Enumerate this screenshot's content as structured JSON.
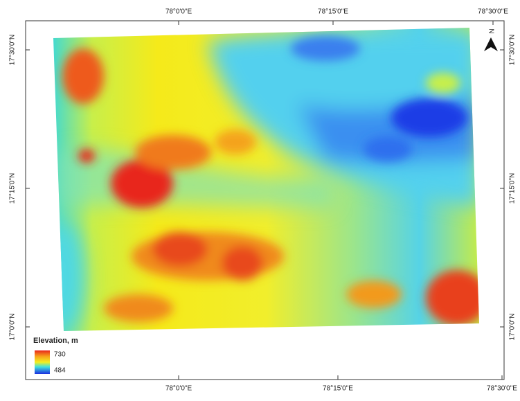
{
  "map": {
    "top_labels": [
      "78°0'0\"E",
      "78°15'0\"E",
      "78°30'0\"E"
    ],
    "bottom_labels": [
      "78°0'0\"E",
      "78°15'0\"E",
      "78°30'0\"E"
    ],
    "left_labels": [
      "17°30'0\"N",
      "17°15'0\"N",
      "17°0'0\"N"
    ],
    "right_labels": [
      "17°30'0\"N",
      "17°15'0\"N",
      "17°0'0\"N"
    ],
    "north": "N",
    "legend": {
      "title": "Elevation, m",
      "max": 730,
      "min": 484
    }
  }
}
